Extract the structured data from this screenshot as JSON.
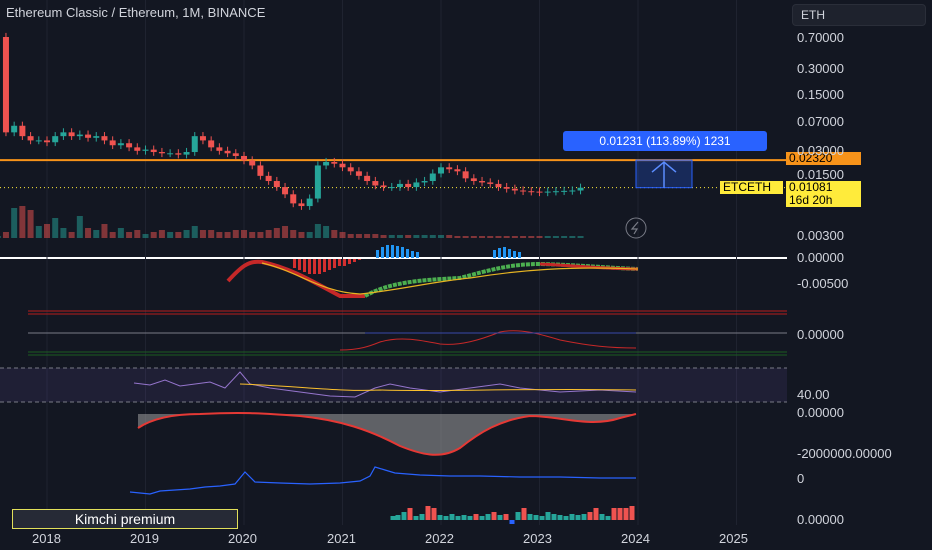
{
  "header": {
    "title": "Ethereum Classic / Ethereum, 1M, BINANCE",
    "symbol_button": "ETH"
  },
  "measure_tooltip": "0.01231 (113.89%) 1231",
  "price_labels": {
    "target": "0.02320",
    "symbol": "ETCETH",
    "last": "0.01081",
    "countdown": "16d 20h"
  },
  "yaxis_main": [
    "0.70000",
    "0.30000",
    "0.15000",
    "0.07000",
    "0.03000",
    "0.01500",
    "0.00300"
  ],
  "yaxis_pane1": [
    "0.00000",
    "-0.00500"
  ],
  "yaxis_pane2": [
    "0.00000"
  ],
  "yaxis_pane3": [
    "40.00"
  ],
  "yaxis_pane4": [
    "0.00000",
    "-2000000.00000"
  ],
  "yaxis_pane5": [
    "0"
  ],
  "yaxis_pane6": [
    "0.00000"
  ],
  "xaxis": [
    "2018",
    "2019",
    "2020",
    "2021",
    "2022",
    "2023",
    "2024",
    "2025"
  ],
  "kimchi_label": "Kimchi premium",
  "colors": {
    "up": "#26a69a",
    "down": "#ef5350",
    "orange": "#f7931a",
    "blue": "#2962ff",
    "yellow": "#ffeb3b",
    "background": "#131722"
  },
  "chart_data": {
    "type": "candlestick",
    "title": "Ethereum Classic / Ethereum, 1M, BINANCE",
    "y_scale": "log",
    "ylim": [
      0.003,
      0.9
    ],
    "x_range": [
      "2017-07",
      "2025-12"
    ],
    "horizontal_line": 0.0232,
    "last_price": 0.01081,
    "series": [
      {
        "name": "ETCETH",
        "values": [
          0.7,
          0.05,
          0.06,
          0.045,
          0.04,
          0.04,
          0.038,
          0.045,
          0.05,
          0.045,
          0.047,
          0.043,
          0.045,
          0.04,
          0.035,
          0.037,
          0.033,
          0.03,
          0.031,
          0.029,
          0.028,
          0.028,
          0.027,
          0.029,
          0.045,
          0.04,
          0.033,
          0.03,
          0.028,
          0.026,
          0.023,
          0.02,
          0.015,
          0.013,
          0.011,
          0.009,
          0.007,
          0.0065,
          0.008,
          0.02,
          0.022,
          0.021,
          0.019,
          0.017,
          0.015,
          0.013,
          0.0115,
          0.011,
          0.011,
          0.012,
          0.011,
          0.0125,
          0.013,
          0.016,
          0.019,
          0.018,
          0.017,
          0.014,
          0.013,
          0.0125,
          0.012,
          0.011,
          0.0105,
          0.01,
          0.0098,
          0.0097,
          0.0095,
          0.0097,
          0.0098,
          0.0099,
          0.01,
          0.0108
        ]
      }
    ]
  }
}
